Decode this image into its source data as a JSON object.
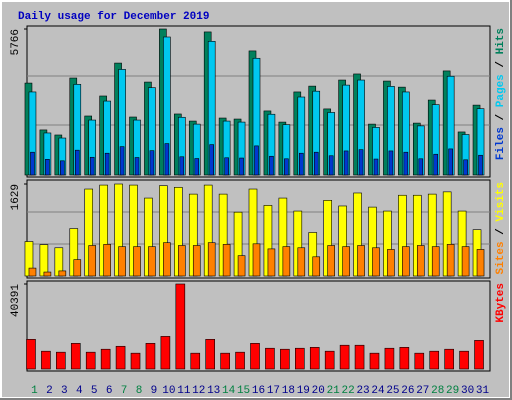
{
  "chart_data": [
    {
      "type": "bar",
      "title": "Daily usage for December 2019",
      "legend_separator": " / ",
      "ylim": [
        0,
        5766
      ],
      "yticks": [
        5766
      ],
      "series": [
        {
          "name": "Hits",
          "color": "#00805c",
          "values": [
            3630,
            1780,
            1580,
            3830,
            2330,
            3120,
            4420,
            2290,
            3670,
            5766,
            2410,
            2130,
            5650,
            2250,
            2210,
            4900,
            2530,
            2090,
            3280,
            3510,
            2610,
            3750,
            3990,
            2010,
            3710,
            3470,
            2050,
            2960,
            4110,
            1700,
            2760
          ]
        },
        {
          "name": "Pages",
          "color": "#00c8f0",
          "values": [
            3280,
            1660,
            1460,
            3580,
            2170,
            2920,
            4170,
            2170,
            3450,
            5450,
            2280,
            2010,
            5280,
            2130,
            2090,
            4610,
            2400,
            1990,
            3080,
            3310,
            2470,
            3550,
            3750,
            1880,
            3500,
            3280,
            1940,
            2780,
            3900,
            1600,
            2620
          ]
        },
        {
          "name": "Files",
          "color": "#0038d0",
          "values": [
            900,
            620,
            560,
            980,
            700,
            860,
            1120,
            690,
            960,
            1240,
            720,
            650,
            1200,
            680,
            670,
            1150,
            740,
            640,
            860,
            900,
            760,
            950,
            1000,
            630,
            950,
            900,
            640,
            820,
            1030,
            600,
            780
          ]
        }
      ]
    },
    {
      "type": "bar",
      "legend_separator": " / ",
      "ylim": [
        0,
        1629
      ],
      "yticks": [
        1629
      ],
      "series": [
        {
          "name": "Visits",
          "color": "#ffff00",
          "values": [
            610,
            555,
            500,
            840,
            1540,
            1610,
            1629,
            1610,
            1380,
            1600,
            1570,
            1450,
            1610,
            1450,
            1130,
            1540,
            1250,
            1380,
            1150,
            770,
            1340,
            1240,
            1470,
            1220,
            1150,
            1430,
            1430,
            1450,
            1490,
            1150,
            820
          ]
        },
        {
          "name": "Sites",
          "color": "#ff8000",
          "values": [
            140,
            70,
            90,
            290,
            540,
            560,
            520,
            520,
            520,
            590,
            540,
            540,
            590,
            560,
            360,
            570,
            480,
            520,
            500,
            340,
            540,
            520,
            540,
            500,
            470,
            520,
            540,
            520,
            560,
            520,
            470
          ]
        }
      ]
    },
    {
      "type": "bar",
      "ylim": [
        0,
        40391
      ],
      "yticks": [
        40391
      ],
      "categories": [
        "1",
        "2",
        "3",
        "4",
        "5",
        "6",
        "7",
        "8",
        "9",
        "10",
        "11",
        "12",
        "13",
        "14",
        "15",
        "16",
        "17",
        "18",
        "19",
        "20",
        "21",
        "22",
        "23",
        "24",
        "25",
        "26",
        "27",
        "28",
        "29",
        "30",
        "31"
      ],
      "category_colors": [
        "#008040",
        "#00008b",
        "#00008b",
        "#00008b",
        "#00008b",
        "#00008b",
        "#008040",
        "#008040",
        "#00008b",
        "#00008b",
        "#00008b",
        "#00008b",
        "#00008b",
        "#008040",
        "#008040",
        "#00008b",
        "#00008b",
        "#00008b",
        "#00008b",
        "#00008b",
        "#008040",
        "#008040",
        "#00008b",
        "#00008b",
        "#00008b",
        "#00008b",
        "#00008b",
        "#008040",
        "#008040",
        "#00008b",
        "#00008b"
      ],
      "series": [
        {
          "name": "KBytes",
          "color": "#ff0000",
          "values": [
            14100,
            8460,
            7990,
            12200,
            7990,
            9400,
            10800,
            7520,
            12200,
            15500,
            40391,
            7520,
            14100,
            7520,
            7990,
            12200,
            9870,
            9400,
            9870,
            10300,
            8460,
            11300,
            11300,
            7520,
            9870,
            10300,
            7520,
            8460,
            9400,
            8460,
            13600
          ]
        }
      ]
    }
  ]
}
